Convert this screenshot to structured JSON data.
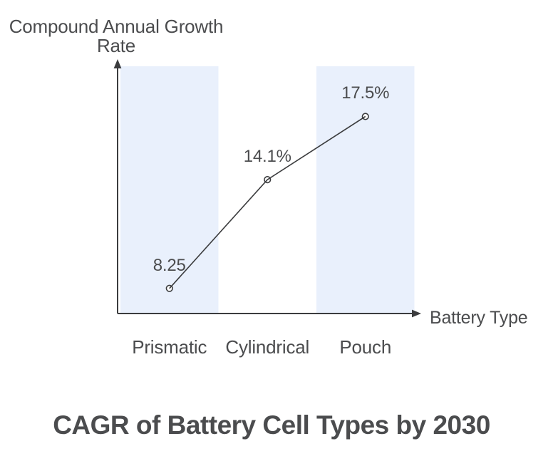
{
  "chart_data": {
    "type": "line",
    "categories": [
      "Prismatic",
      "Cylindrical",
      "Pouch"
    ],
    "values": [
      8.25,
      14.1,
      17.5
    ],
    "point_labels": [
      "8.25",
      "14.1%",
      "17.5%"
    ],
    "title": "CAGR of Battery Cell Types by 2030",
    "xlabel": "Battery Type",
    "ylabel": "Compound Annual Growth\nRate",
    "ylim": [
      6.9,
      20.2
    ],
    "grid": false,
    "legend": false,
    "marker": "open-circle",
    "band_columns": [
      0,
      2
    ],
    "colors": {
      "band": "#E9F0FC",
      "line": "#3B3C3E",
      "text": "#4B4C4E",
      "marker_fill": "#FFFFFF",
      "background": "#FFFFFF"
    }
  }
}
